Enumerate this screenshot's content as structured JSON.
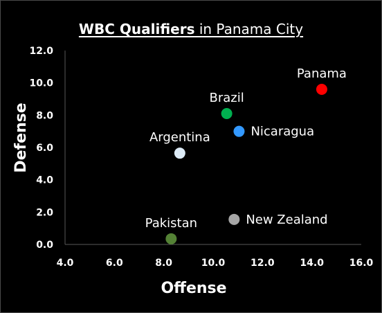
{
  "chart_data": {
    "type": "scatter",
    "title_bold": "WBC Qualifiers",
    "title_rest": " in Panama City",
    "xlabel": "Offense",
    "ylabel": "Defense",
    "xlim": [
      4.0,
      16.0
    ],
    "ylim": [
      0.0,
      12.0
    ],
    "x_ticks": [
      "4.0",
      "6.0",
      "8.0",
      "10.0",
      "12.0",
      "14.0",
      "16.0"
    ],
    "y_ticks": [
      "0.0",
      "2.0",
      "4.0",
      "6.0",
      "8.0",
      "10.0",
      "12.0"
    ],
    "grid": false,
    "points": [
      {
        "label": "Panama",
        "x": 14.4,
        "y": 9.6,
        "color": "#ff0000",
        "label_pos": "above"
      },
      {
        "label": "Brazil",
        "x": 10.55,
        "y": 8.1,
        "color": "#00b050",
        "label_pos": "above"
      },
      {
        "label": "Nicaragua",
        "x": 11.05,
        "y": 7.0,
        "color": "#3399ff",
        "label_pos": "right"
      },
      {
        "label": "Argentina",
        "x": 8.65,
        "y": 5.65,
        "color": "#ddebf7",
        "label_pos": "above"
      },
      {
        "label": "New Zealand",
        "x": 10.85,
        "y": 1.55,
        "color": "#a6a6a6",
        "label_pos": "right"
      },
      {
        "label": "Pakistan",
        "x": 8.3,
        "y": 0.35,
        "color": "#548235",
        "label_pos": "above"
      }
    ]
  }
}
